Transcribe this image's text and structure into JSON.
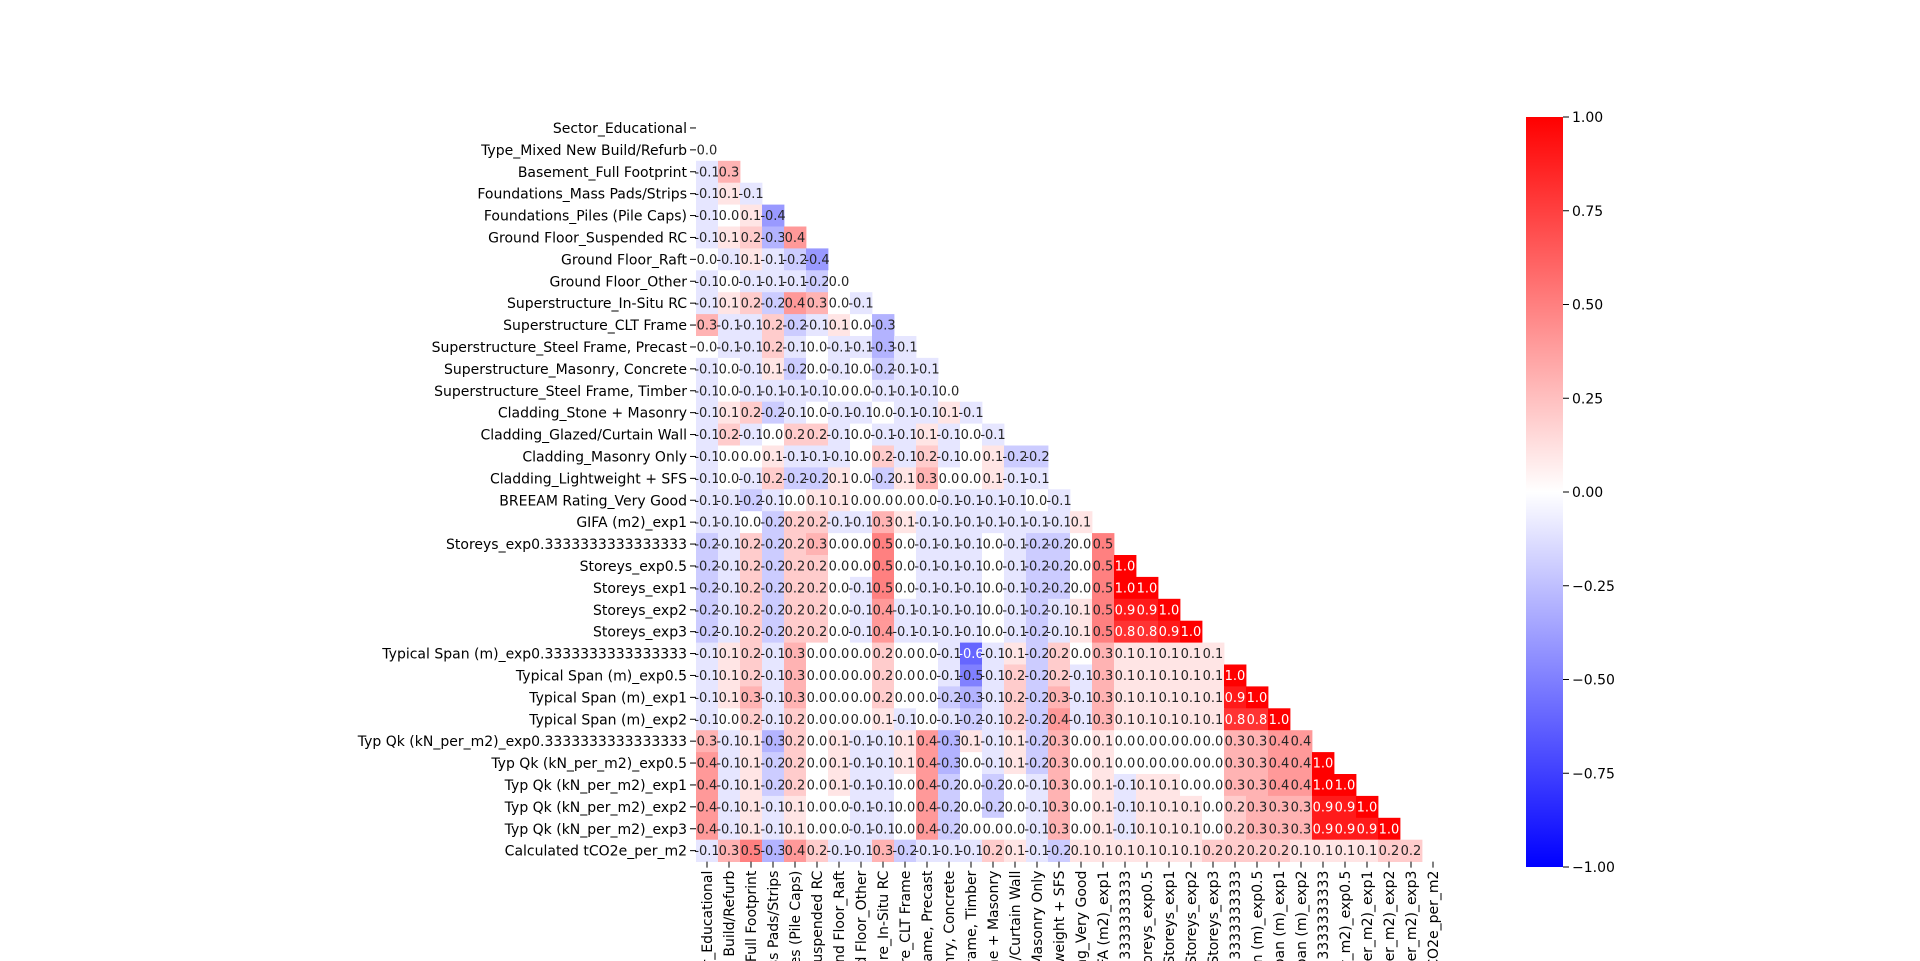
{
  "chart_data": {
    "type": "heatmap",
    "title": "",
    "xlabel": "",
    "ylabel": "",
    "labels": [
      "Sector_Educational",
      "Type_Mixed New Build/Refurb",
      "Basement_Full Footprint",
      "Foundations_Mass Pads/Strips",
      "Foundations_Piles (Pile Caps)",
      "Ground Floor_Suspended RC",
      "Ground Floor_Raft",
      "Ground Floor_Other",
      "Superstructure_In-Situ RC",
      "Superstructure_CLT Frame",
      "Superstructure_Steel Frame, Precast",
      "Superstructure_Masonry, Concrete",
      "Superstructure_Steel Frame, Timber",
      "Cladding_Stone + Masonry",
      "Cladding_Glazed/Curtain Wall",
      "Cladding_Masonry Only",
      "Cladding_Lightweight + SFS",
      "BREEAM Rating_Very Good",
      "GIFA (m2)_exp1",
      "Storeys_exp0.3333333333333333",
      "Storeys_exp0.5",
      "Storeys_exp1",
      "Storeys_exp2",
      "Storeys_exp3",
      "Typical Span (m)_exp0.3333333333333333",
      "Typical Span (m)_exp0.5",
      "Typical Span (m)_exp1",
      "Typical Span (m)_exp2",
      "Typ Qk (kN_per_m2)_exp0.3333333333333333",
      "Typ Qk (kN_per_m2)_exp0.5",
      "Typ Qk (kN_per_m2)_exp1",
      "Typ Qk (kN_per_m2)_exp2",
      "Typ Qk (kN_per_m2)_exp3",
      "Calculated tCO2e_per_m2"
    ],
    "x_tick_labels": [
      "r_Educational",
      "v Build/Refurb",
      "_Full Footprint",
      "ss Pads/Strips",
      "es (Pile Caps)",
      "Suspended RC",
      "nd Floor_Raft",
      "d Floor_Other",
      "ure_In-Situ RC",
      "re_CLT Frame",
      "rame, Precast",
      "nry, Concrete",
      "Frame, Timber",
      "ne + Masonry",
      "d/Curtain Wall",
      "Masonry Only",
      "weight + SFS",
      "ng_Very Good",
      "FA (m2)_exp1",
      "3333333333",
      "toreys_exp0.5",
      "Storeys_exp1",
      "Storeys_exp2",
      "Storeys_exp3",
      "3333333333",
      "an (m)_exp0.5",
      "pan (m)_exp1",
      "pan (m)_exp2",
      "3333333333",
      "r_m2)_exp0.5",
      "per_m2)_exp1",
      "per_m2)_exp2",
      "per_m2)_exp3",
      "CO2e_per_m2"
    ],
    "rows": [
      [],
      [
        0.0
      ],
      [
        -0.1,
        0.3
      ],
      [
        -0.1,
        0.1,
        -0.1
      ],
      [
        -0.1,
        -0.0,
        0.1,
        -0.4
      ],
      [
        -0.1,
        0.1,
        0.2,
        -0.3,
        0.4
      ],
      [
        -0.0,
        -0.1,
        0.1,
        -0.1,
        -0.2,
        -0.4
      ],
      [
        -0.1,
        -0.0,
        -0.1,
        -0.1,
        -0.1,
        -0.2,
        -0.0
      ],
      [
        -0.1,
        0.1,
        0.2,
        -0.2,
        0.4,
        0.3,
        0.0,
        -0.1
      ],
      [
        0.3,
        -0.1,
        -0.1,
        0.2,
        -0.2,
        -0.1,
        0.1,
        -0.0,
        -0.3
      ],
      [
        -0.0,
        -0.1,
        -0.1,
        0.2,
        -0.1,
        -0.0,
        -0.1,
        -0.1,
        -0.3,
        -0.1
      ],
      [
        -0.1,
        -0.0,
        -0.1,
        0.1,
        -0.2,
        -0.0,
        -0.1,
        -0.0,
        -0.2,
        -0.1,
        -0.1
      ],
      [
        -0.1,
        -0.0,
        -0.1,
        -0.1,
        -0.1,
        -0.1,
        -0.0,
        -0.0,
        -0.1,
        -0.1,
        -0.1,
        -0.0
      ],
      [
        -0.1,
        0.1,
        0.2,
        -0.2,
        -0.1,
        -0.0,
        -0.1,
        -0.1,
        -0.0,
        -0.1,
        -0.1,
        0.1,
        -0.1
      ],
      [
        -0.1,
        0.2,
        -0.1,
        0.0,
        0.2,
        0.2,
        -0.1,
        -0.0,
        -0.1,
        -0.1,
        0.1,
        -0.1,
        -0.0,
        -0.1
      ],
      [
        -0.1,
        0.0,
        0.0,
        0.1,
        -0.1,
        -0.1,
        -0.1,
        0.0,
        0.2,
        -0.1,
        0.2,
        -0.1,
        0.0,
        0.1,
        -0.2,
        -0.2
      ],
      [
        -0.1,
        -0.0,
        -0.1,
        0.2,
        -0.2,
        -0.2,
        0.1,
        -0.0,
        -0.2,
        0.1,
        0.3,
        -0.0,
        -0.0,
        0.1,
        -0.1,
        -0.1
      ],
      [
        -0.1,
        -0.1,
        -0.2,
        -0.1,
        0.0,
        0.1,
        0.1,
        -0.0,
        0.0,
        0.0,
        0.0,
        -0.1,
        -0.1,
        -0.1,
        -0.1,
        -0.0,
        -0.1
      ],
      [
        -0.1,
        -0.1,
        -0.0,
        -0.2,
        0.2,
        0.2,
        -0.1,
        -0.1,
        0.3,
        0.1,
        -0.1,
        -0.1,
        -0.1,
        -0.1,
        -0.1,
        -0.1,
        -0.1,
        0.1
      ],
      [
        -0.2,
        -0.1,
        0.2,
        -0.2,
        0.2,
        0.3,
        0.0,
        -0.0,
        0.5,
        -0.0,
        -0.1,
        -0.1,
        -0.1,
        0.0,
        -0.1,
        -0.2,
        -0.2,
        0.0,
        0.5
      ],
      [
        -0.2,
        -0.1,
        0.2,
        -0.2,
        0.2,
        0.2,
        0.0,
        -0.0,
        0.5,
        -0.0,
        -0.1,
        -0.1,
        -0.1,
        0.0,
        -0.1,
        -0.2,
        -0.2,
        0.0,
        0.5,
        1.0
      ],
      [
        -0.2,
        -0.1,
        0.2,
        -0.2,
        0.2,
        0.2,
        0.0,
        -0.1,
        0.5,
        -0.0,
        -0.1,
        -0.1,
        -0.1,
        0.0,
        -0.1,
        -0.2,
        -0.2,
        0.0,
        0.5,
        1.0,
        1.0
      ],
      [
        -0.2,
        -0.1,
        0.2,
        -0.2,
        0.2,
        0.2,
        0.0,
        -0.1,
        0.4,
        -0.1,
        -0.1,
        -0.1,
        -0.1,
        0.0,
        -0.1,
        -0.2,
        -0.1,
        0.1,
        0.5,
        0.9,
        0.9,
        1.0
      ],
      [
        -0.2,
        -0.1,
        0.2,
        -0.2,
        0.2,
        0.2,
        0.0,
        -0.1,
        0.4,
        -0.1,
        -0.1,
        -0.1,
        -0.1,
        0.0,
        -0.1,
        -0.2,
        -0.1,
        0.1,
        0.5,
        0.8,
        0.8,
        0.9,
        1.0
      ],
      [
        -0.1,
        0.1,
        0.2,
        -0.1,
        0.3,
        0.0,
        0.0,
        -0.0,
        0.2,
        0.0,
        0.0,
        -0.1,
        -0.6,
        -0.1,
        0.1,
        -0.2,
        0.2,
        -0.0,
        0.3,
        0.1,
        0.1,
        0.1,
        0.1,
        0.1
      ],
      [
        -0.1,
        0.1,
        0.2,
        -0.1,
        0.3,
        0.0,
        0.0,
        -0.0,
        0.2,
        -0.0,
        0.0,
        -0.1,
        -0.5,
        -0.1,
        0.2,
        -0.2,
        0.2,
        -0.1,
        0.3,
        0.1,
        0.1,
        0.1,
        0.1,
        0.1,
        1.0
      ],
      [
        -0.1,
        0.1,
        0.3,
        -0.1,
        0.3,
        0.0,
        0.0,
        -0.0,
        0.2,
        0.0,
        0.0,
        -0.2,
        -0.3,
        -0.1,
        0.2,
        -0.2,
        0.3,
        -0.1,
        0.3,
        0.1,
        0.1,
        0.1,
        0.1,
        0.1,
        0.9,
        1.0
      ],
      [
        -0.1,
        0.0,
        0.2,
        -0.1,
        0.2,
        0.0,
        0.0,
        -0.0,
        0.1,
        -0.1,
        0.0,
        -0.1,
        -0.2,
        -0.1,
        0.2,
        -0.2,
        0.4,
        -0.1,
        0.3,
        0.1,
        0.1,
        0.1,
        0.1,
        0.1,
        0.8,
        0.8,
        1.0
      ],
      [
        0.3,
        -0.1,
        0.1,
        -0.3,
        0.2,
        0.0,
        0.1,
        -0.1,
        -0.1,
        0.1,
        0.4,
        -0.3,
        0.1,
        -0.1,
        0.1,
        -0.2,
        0.3,
        0.0,
        0.1,
        -0.0,
        0.0,
        0.0,
        0.0,
        0.0,
        0.3,
        0.3,
        0.4,
        0.4
      ],
      [
        0.4,
        -0.1,
        0.1,
        -0.2,
        0.2,
        0.0,
        0.1,
        -0.1,
        -0.1,
        0.1,
        0.4,
        -0.3,
        0.0,
        -0.1,
        0.1,
        -0.2,
        0.3,
        0.0,
        0.1,
        -0.0,
        0.0,
        0.0,
        0.0,
        0.0,
        0.3,
        0.3,
        0.4,
        0.4,
        1.0
      ],
      [
        0.4,
        -0.1,
        0.1,
        -0.2,
        0.2,
        0.0,
        0.1,
        -0.1,
        -0.1,
        0.0,
        0.4,
        -0.2,
        0.0,
        -0.2,
        0.0,
        -0.1,
        0.3,
        0.0,
        0.1,
        -0.1,
        0.1,
        0.1,
        0.0,
        0.0,
        0.3,
        0.3,
        0.4,
        0.4,
        1.0,
        1.0
      ],
      [
        0.4,
        -0.1,
        0.1,
        -0.1,
        0.1,
        -0.0,
        0.0,
        -0.1,
        -0.1,
        0.0,
        0.4,
        -0.2,
        0.0,
        -0.2,
        0.0,
        -0.1,
        0.3,
        -0.0,
        0.1,
        -0.1,
        0.1,
        0.1,
        0.1,
        -0.0,
        0.2,
        0.3,
        0.3,
        0.3,
        0.9,
        0.9,
        1.0
      ],
      [
        0.4,
        -0.1,
        0.1,
        -0.1,
        0.1,
        0.0,
        0.0,
        -0.1,
        -0.1,
        0.0,
        0.4,
        -0.2,
        0.0,
        0.0,
        -0.0,
        -0.1,
        0.3,
        -0.0,
        0.1,
        -0.1,
        0.1,
        0.1,
        0.1,
        -0.0,
        0.2,
        0.3,
        0.3,
        0.3,
        0.9,
        0.9,
        0.9,
        1.0
      ],
      [
        -0.1,
        0.3,
        0.5,
        -0.3,
        0.4,
        0.2,
        -0.1,
        -0.1,
        0.3,
        -0.2,
        -0.1,
        -0.1,
        -0.1,
        0.2,
        0.1,
        -0.1,
        -0.2,
        0.1,
        0.1,
        0.1,
        0.1,
        0.1,
        0.1,
        0.2,
        0.2,
        0.2,
        0.2,
        0.1,
        0.1,
        0.1,
        0.1,
        0.2,
        0.2
      ]
    ],
    "vmin": -1.0,
    "vmax": 1.0,
    "colormap": "bwr",
    "colormap_colors": {
      "low": "#0000ff",
      "mid": "#ffffff",
      "high": "#ff0000"
    },
    "colorbar_ticks": [
      "1.00",
      "0.75",
      "0.50",
      "0.25",
      "0.00",
      "−0.25",
      "−0.50",
      "−0.75",
      "−1.00"
    ],
    "colorbar_tick_values": [
      1.0,
      0.75,
      0.5,
      0.25,
      0.0,
      -0.25,
      -0.5,
      -0.75,
      -1.0
    ],
    "annotation_format": "0.1f",
    "mask": "upper-triangle"
  }
}
